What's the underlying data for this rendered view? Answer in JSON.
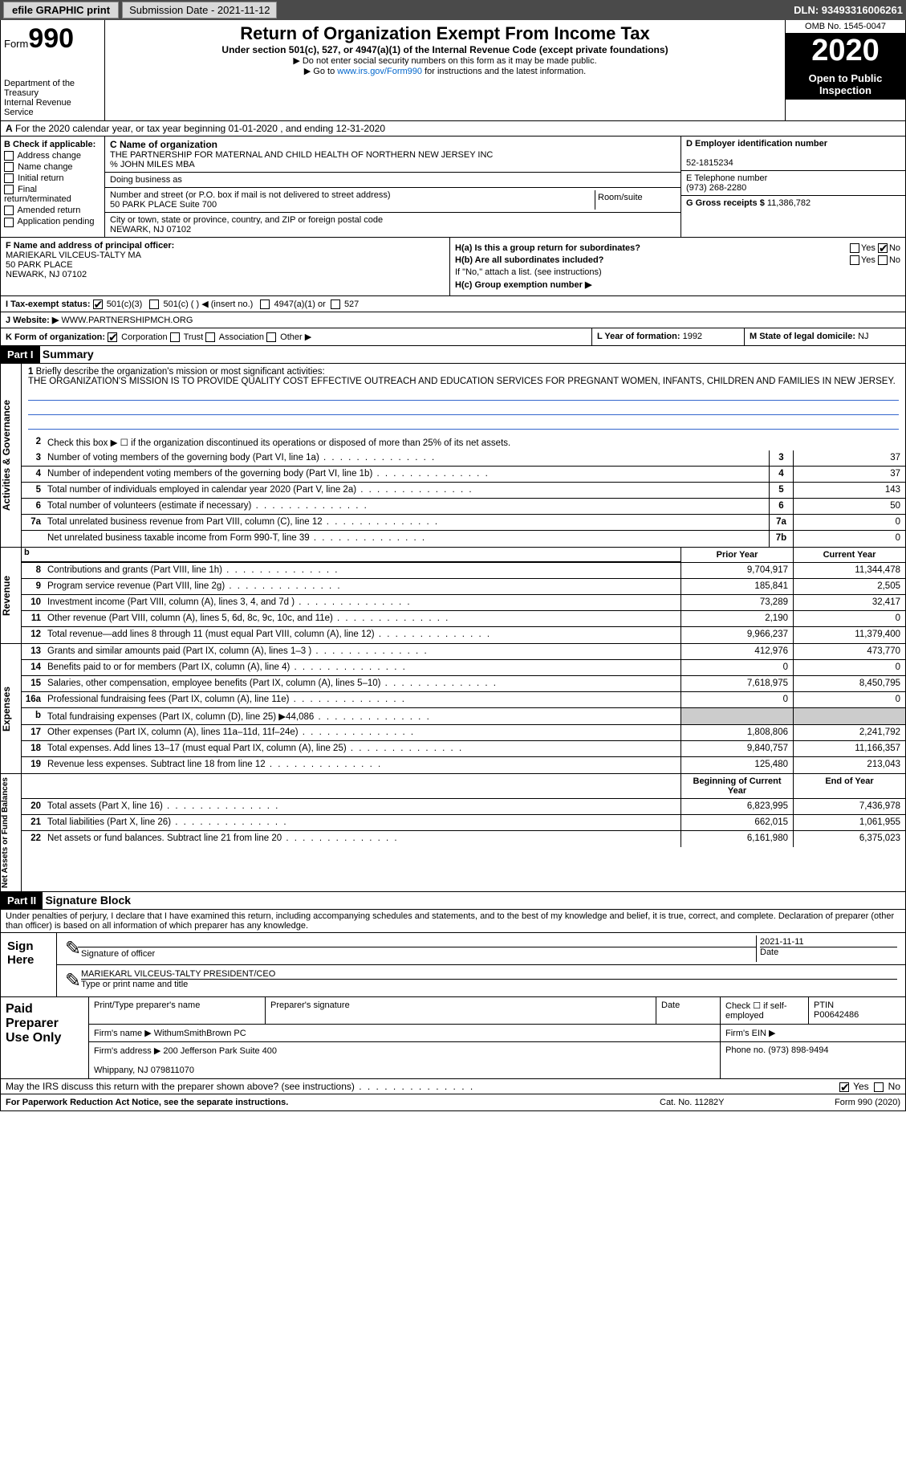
{
  "topbar": {
    "efile": "efile GRAPHIC print",
    "submission_label": "Submission Date - 2021-11-12",
    "dln": "DLN: 93493316006261"
  },
  "header": {
    "form_label": "Form",
    "form_no": "990",
    "dept": "Department of the Treasury\nInternal Revenue Service",
    "title": "Return of Organization Exempt From Income Tax",
    "subtitle": "Under section 501(c), 527, or 4947(a)(1) of the Internal Revenue Code (except private foundations)",
    "note1": "▶ Do not enter social security numbers on this form as it may be made public.",
    "note2": "▶ Go to www.irs.gov/Form990 for instructions and the latest information.",
    "link": "www.irs.gov/Form990",
    "omb": "OMB No. 1545-0047",
    "year": "2020",
    "inspect": "Open to Public Inspection"
  },
  "lineA": "For the 2020 calendar year, or tax year beginning 01-01-2020    , and ending 12-31-2020",
  "boxB": {
    "title": "B Check if applicable:",
    "items": [
      "Address change",
      "Name change",
      "Initial return",
      "Final return/terminated",
      "Amended return",
      "Application pending"
    ]
  },
  "boxC": {
    "label": "C Name of organization",
    "name": "THE PARTNERSHIP FOR MATERNAL AND CHILD HEALTH OF NORTHERN NEW JERSEY INC\n% JOHN MILES MBA",
    "dba_label": "Doing business as",
    "dba": "",
    "street_label": "Number and street (or P.O. box if mail is not delivered to street address)",
    "street": "50 PARK PLACE Suite 700",
    "room_label": "Room/suite",
    "room": "",
    "city_label": "City or town, state or province, country, and ZIP or foreign postal code",
    "city": "NEWARK, NJ  07102"
  },
  "boxD": {
    "label": "D Employer identification number",
    "val": "52-1815234"
  },
  "boxE": {
    "label": "E Telephone number",
    "val": "(973) 268-2280"
  },
  "boxG": {
    "label": "G Gross receipts $",
    "val": "11,386,782"
  },
  "boxF": {
    "label": "F  Name and address of principal officer:",
    "val": "MARIEKARL VILCEUS-TALTY MA\n50 PARK PLACE\nNEWARK, NJ  07102"
  },
  "boxH": {
    "a": "H(a)  Is this a group return for subordinates?",
    "a_yes": "Yes",
    "a_no": "No",
    "b": "H(b)  Are all subordinates included?",
    "b_note": "If \"No,\" attach a list. (see instructions)",
    "c": "H(c)  Group exemption number ▶"
  },
  "lineI": {
    "label": "I    Tax-exempt status:",
    "opts": [
      "501(c)(3)",
      "501(c) (  ) ◀ (insert no.)",
      "4947(a)(1) or",
      "527"
    ]
  },
  "lineJ": {
    "label": "J   Website: ▶",
    "val": "WWW.PARTNERSHIPMCH.ORG"
  },
  "lineK": {
    "label": "K Form of organization:",
    "opts": [
      "Corporation",
      "Trust",
      "Association",
      "Other ▶"
    ]
  },
  "lineL": {
    "label": "L Year of formation:",
    "val": "1992"
  },
  "lineM": {
    "label": "M State of legal domicile:",
    "val": "NJ"
  },
  "part1": {
    "hdr": "Part I",
    "title": "Summary"
  },
  "summary": {
    "q1_label": "1",
    "q1": "Briefly describe the organization's mission or most significant activities:",
    "mission": "THE ORGANIZATION'S MISSION IS TO PROVIDE QUALITY COST EFFECTIVE OUTREACH AND EDUCATION SERVICES FOR PREGNANT WOMEN, INFANTS, CHILDREN AND FAMILIES IN NEW JERSEY.",
    "q2": "Check this box ▶ ☐  if the organization discontinued its operations or disposed of more than 25% of its net assets.",
    "sections": [
      {
        "label": "Activities & Governance",
        "lines": [
          {
            "n": "3",
            "t": "Number of voting members of the governing body (Part VI, line 1a)",
            "box": "3",
            "v": "37"
          },
          {
            "n": "4",
            "t": "Number of independent voting members of the governing body (Part VI, line 1b)",
            "box": "4",
            "v": "37"
          },
          {
            "n": "5",
            "t": "Total number of individuals employed in calendar year 2020 (Part V, line 2a)",
            "box": "5",
            "v": "143"
          },
          {
            "n": "6",
            "t": "Total number of volunteers (estimate if necessary)",
            "box": "6",
            "v": "50"
          },
          {
            "n": "7a",
            "t": "Total unrelated business revenue from Part VIII, column (C), line 12",
            "box": "7a",
            "v": "0"
          },
          {
            "n": "",
            "t": "Net unrelated business taxable income from Form 990-T, line 39",
            "box": "7b",
            "v": "0"
          }
        ]
      },
      {
        "label": "Revenue",
        "header": true,
        "h1": "Prior Year",
        "h2": "Current Year",
        "lines": [
          {
            "n": "8",
            "t": "Contributions and grants (Part VIII, line 1h)",
            "py": "9,704,917",
            "cy": "11,344,478"
          },
          {
            "n": "9",
            "t": "Program service revenue (Part VIII, line 2g)",
            "py": "185,841",
            "cy": "2,505"
          },
          {
            "n": "10",
            "t": "Investment income (Part VIII, column (A), lines 3, 4, and 7d )",
            "py": "73,289",
            "cy": "32,417"
          },
          {
            "n": "11",
            "t": "Other revenue (Part VIII, column (A), lines 5, 6d, 8c, 9c, 10c, and 11e)",
            "py": "2,190",
            "cy": "0"
          },
          {
            "n": "12",
            "t": "Total revenue—add lines 8 through 11 (must equal Part VIII, column (A), line 12)",
            "py": "9,966,237",
            "cy": "11,379,400"
          }
        ]
      },
      {
        "label": "Expenses",
        "lines": [
          {
            "n": "13",
            "t": "Grants and similar amounts paid (Part IX, column (A), lines 1–3 )",
            "py": "412,976",
            "cy": "473,770"
          },
          {
            "n": "14",
            "t": "Benefits paid to or for members (Part IX, column (A), line 4)",
            "py": "0",
            "cy": "0"
          },
          {
            "n": "15",
            "t": "Salaries, other compensation, employee benefits (Part IX, column (A), lines 5–10)",
            "py": "7,618,975",
            "cy": "8,450,795"
          },
          {
            "n": "16a",
            "t": "Professional fundraising fees (Part IX, column (A), line 11e)",
            "py": "0",
            "cy": "0"
          },
          {
            "n": "b",
            "t": "Total fundraising expenses (Part IX, column (D), line 25) ▶44,086",
            "shade": true
          },
          {
            "n": "17",
            "t": "Other expenses (Part IX, column (A), lines 11a–11d, 11f–24e)",
            "py": "1,808,806",
            "cy": "2,241,792"
          },
          {
            "n": "18",
            "t": "Total expenses. Add lines 13–17 (must equal Part IX, column (A), line 25)",
            "py": "9,840,757",
            "cy": "11,166,357"
          },
          {
            "n": "19",
            "t": "Revenue less expenses. Subtract line 18 from line 12",
            "py": "125,480",
            "cy": "213,043"
          }
        ]
      },
      {
        "label": "Net Assets or Fund Balances",
        "header": true,
        "h1": "Beginning of Current Year",
        "h2": "End of Year",
        "lines": [
          {
            "n": "20",
            "t": "Total assets (Part X, line 16)",
            "py": "6,823,995",
            "cy": "7,436,978"
          },
          {
            "n": "21",
            "t": "Total liabilities (Part X, line 26)",
            "py": "662,015",
            "cy": "1,061,955"
          },
          {
            "n": "22",
            "t": "Net assets or fund balances. Subtract line 21 from line 20",
            "py": "6,161,980",
            "cy": "6,375,023"
          }
        ]
      }
    ]
  },
  "part2": {
    "hdr": "Part II",
    "title": "Signature Block",
    "jurat": "Under penalties of perjury, I declare that I have examined this return, including accompanying schedules and statements, and to the best of my knowledge and belief, it is true, correct, and complete. Declaration of preparer (other than officer) is based on all information of which preparer has any knowledge."
  },
  "sign": {
    "label": "Sign Here",
    "sig_label": "Signature of officer",
    "date_label": "Date",
    "date": "2021-11-11",
    "name": "MARIEKARL VILCEUS-TALTY PRESIDENT/CEO",
    "name_label": "Type or print name and title"
  },
  "prep": {
    "label": "Paid Preparer Use Only",
    "c1": "Print/Type preparer's name",
    "c2": "Preparer's signature",
    "c3": "Date",
    "c4": "Check ☐ if self-employed",
    "c5": "PTIN",
    "ptin": "P00642486",
    "firm_label": "Firm's name    ▶",
    "firm": "WithumSmithBrown PC",
    "ein_label": "Firm's EIN ▶",
    "addr_label": "Firm's address ▶",
    "addr": "200 Jefferson Park Suite 400\n\nWhippany, NJ  079811070",
    "phone_label": "Phone no.",
    "phone": "(973) 898-9494"
  },
  "discuss": {
    "q": "May the IRS discuss this return with the preparer shown above? (see instructions)",
    "yes": "Yes",
    "no": "No"
  },
  "footer": {
    "l": "For Paperwork Reduction Act Notice, see the separate instructions.",
    "m": "Cat. No. 11282Y",
    "r": "Form 990 (2020)"
  }
}
